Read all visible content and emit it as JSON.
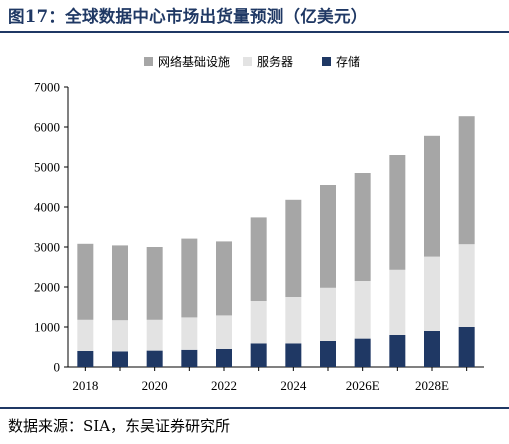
{
  "figure": {
    "title": "图17：全球数据中心市场出货量预测（亿美元）",
    "source": "数据来源：SIA，东吴证券研究所"
  },
  "colors": {
    "title": "#1f3864",
    "网络基础设施": "#a6a6a6",
    "服务器": "#e3e3e3",
    "存储": "#1f3864"
  },
  "chart_data": {
    "type": "bar",
    "stacked": true,
    "title": "图17：全球数据中心市场出货量预测（亿美元）",
    "categories": [
      "2018",
      "2019",
      "2020",
      "2021",
      "2022",
      "2023",
      "2024",
      "2025E",
      "2026E",
      "2027E",
      "2028E",
      "2029E"
    ],
    "x_tick_labels": [
      "2018",
      "2020",
      "2022",
      "2024",
      "2026E",
      "2028E"
    ],
    "ylim": [
      0,
      7000
    ],
    "yticks": [
      0,
      1000,
      2000,
      3000,
      4000,
      5000,
      6000,
      7000
    ],
    "grid": false,
    "legend_position": "top",
    "series": [
      {
        "name": "存储",
        "values": [
          400,
          390,
          410,
          430,
          450,
          590,
          590,
          650,
          710,
          800,
          900,
          1000
        ]
      },
      {
        "name": "服务器",
        "values": [
          780,
          780,
          770,
          810,
          840,
          1060,
          1160,
          1330,
          1440,
          1630,
          1860,
          2070
        ]
      },
      {
        "name": "网络基础设施",
        "values": [
          1900,
          1870,
          1820,
          1970,
          1850,
          2090,
          2430,
          2570,
          2700,
          2870,
          3020,
          3200
        ]
      }
    ],
    "legend_order": [
      "网络基础设施",
      "服务器",
      "存储"
    ]
  }
}
